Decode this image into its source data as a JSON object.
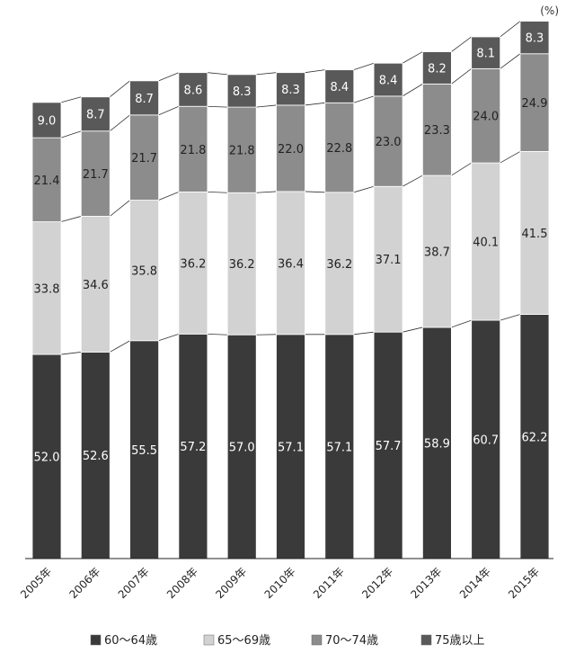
{
  "chart_data": {
    "type": "bar",
    "stacked": true,
    "unit_label": "(%)",
    "categories": [
      "2005年",
      "2006年",
      "2007年",
      "2008年",
      "2009年",
      "2010年",
      "2011年",
      "2012年",
      "2013年",
      "2014年",
      "2015年"
    ],
    "series": [
      {
        "name": "60〜64歳",
        "color": "#3a3a3a",
        "label_color": "#ffffff",
        "values": [
          52.0,
          52.6,
          55.5,
          57.2,
          57.0,
          57.1,
          57.1,
          57.7,
          58.9,
          60.7,
          62.2
        ]
      },
      {
        "name": "65〜69歳",
        "color": "#d2d2d2",
        "label_color": "#222222",
        "values": [
          33.8,
          34.6,
          35.8,
          36.2,
          36.2,
          36.4,
          36.2,
          37.1,
          38.7,
          40.1,
          41.5
        ]
      },
      {
        "name": "70〜74歳",
        "color": "#8c8c8c",
        "label_color": "#222222",
        "values": [
          21.4,
          21.7,
          21.7,
          21.8,
          21.8,
          22.0,
          22.8,
          23.0,
          23.3,
          24.0,
          24.9
        ]
      },
      {
        "name": "75歳以上",
        "color": "#595959",
        "label_color": "#ffffff",
        "values": [
          9.0,
          8.7,
          8.7,
          8.6,
          8.3,
          8.3,
          8.4,
          8.4,
          8.2,
          8.1,
          8.3
        ]
      }
    ],
    "ylim": [
      0,
      140
    ],
    "legend_position": "bottom",
    "connector_lines": true,
    "grid": false
  }
}
